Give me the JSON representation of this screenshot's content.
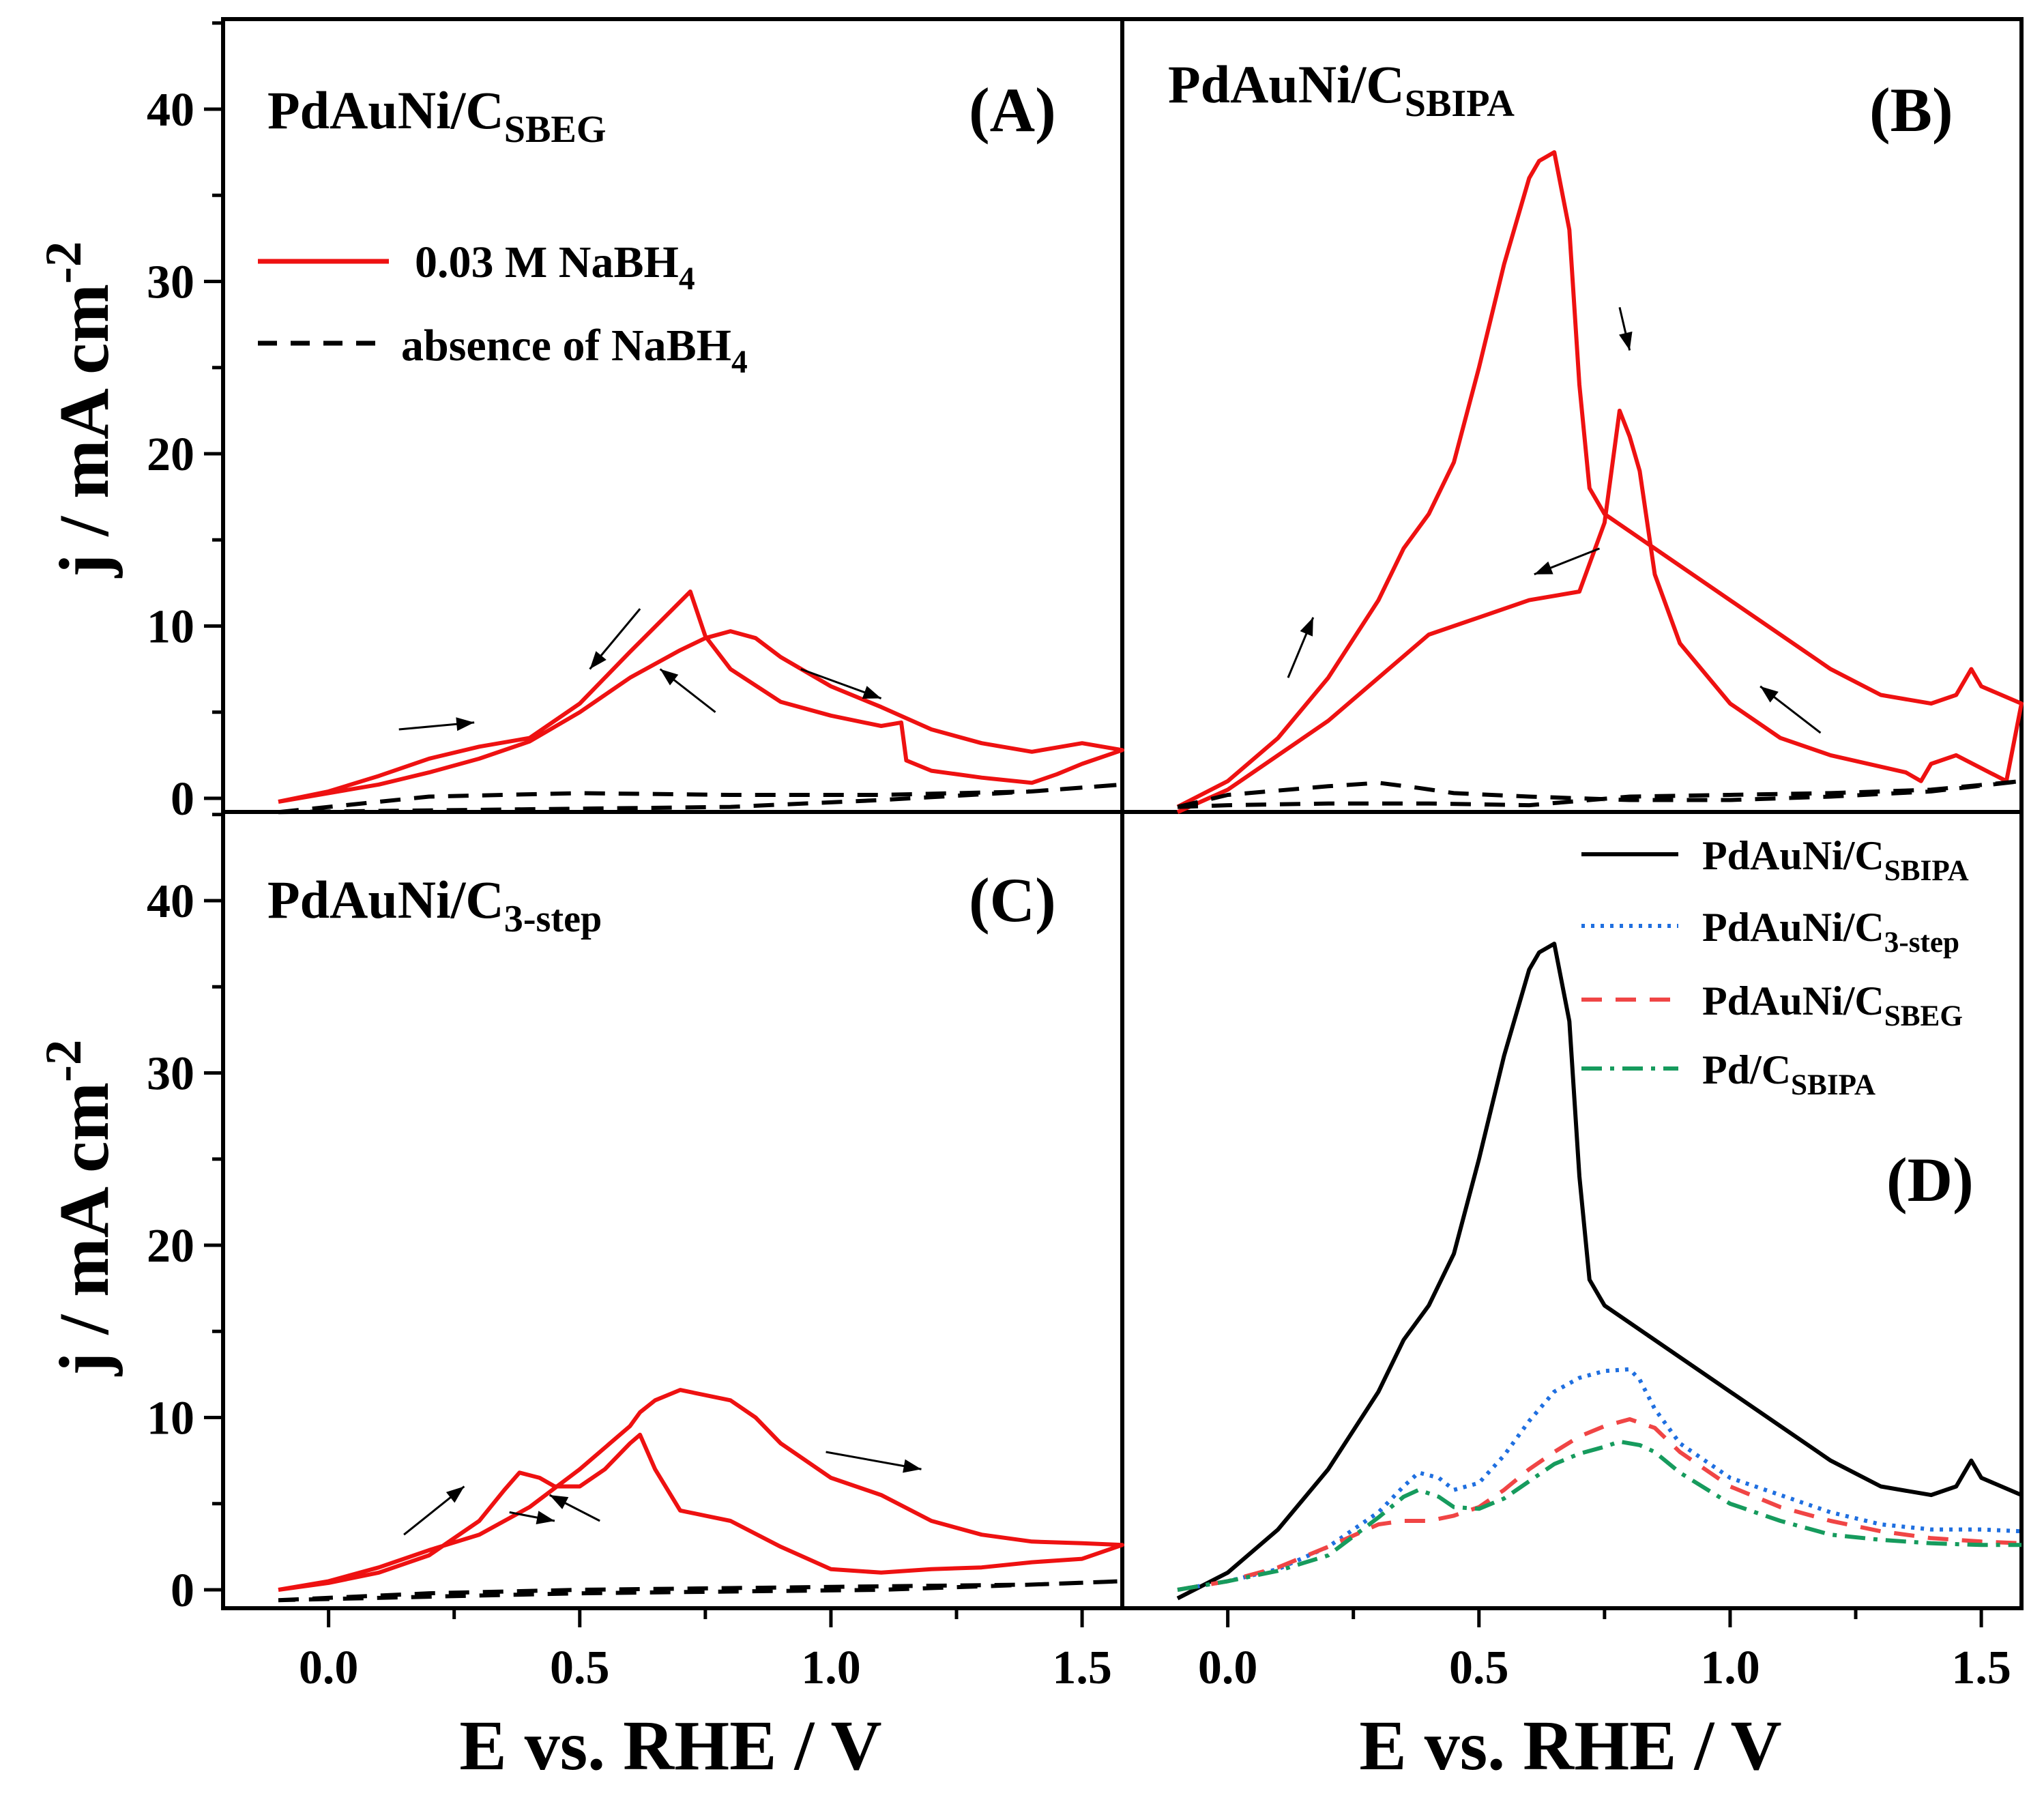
{
  "chart_data": {
    "type": "line",
    "x_tick_labels": [
      "0.0",
      "0.5",
      "1.0",
      "1.5"
    ],
    "y_tick_labels": [
      "0",
      "10",
      "20",
      "30",
      "40"
    ],
    "xlim": [
      -0.21,
      1.58
    ],
    "ylim": [
      -1,
      45
    ],
    "xlabel": "E vs. RHE / V",
    "ylabel": "j / mA cm",
    "ylabel_sup": "-2",
    "legend_A": {
      "solid_label": "0.03 M NaBH",
      "solid_sub": "4",
      "dashed_label": "absence of NaBH",
      "dashed_sub": "4"
    },
    "panels": [
      {
        "id": "A",
        "letter": "(A)",
        "title": "PdAuNi/C",
        "title_sub": "SBEG",
        "series": [
          {
            "name": "0.03 M NaBH4",
            "color": "#ee1111",
            "style": "solid",
            "x": [
              -0.1,
              0.0,
              0.1,
              0.2,
              0.3,
              0.4,
              0.5,
              0.6,
              0.7,
              0.75,
              0.8,
              0.85,
              0.9,
              1.0,
              1.1,
              1.2,
              1.3,
              1.4,
              1.5,
              1.58,
              1.5,
              1.45,
              1.4,
              1.3,
              1.2,
              1.15,
              1.14,
              1.1,
              1.0,
              0.9,
              0.8,
              0.75,
              0.72,
              0.6,
              0.5,
              0.4,
              0.3,
              0.2,
              0.1,
              0.0,
              -0.1
            ],
            "y": [
              -0.2,
              0.3,
              0.8,
              1.5,
              2.3,
              3.3,
              5.0,
              7.0,
              8.6,
              9.3,
              9.7,
              9.3,
              8.2,
              6.5,
              5.3,
              4.0,
              3.2,
              2.7,
              3.2,
              2.8,
              2.0,
              1.4,
              0.9,
              1.2,
              1.6,
              2.2,
              4.4,
              4.2,
              4.8,
              5.6,
              7.5,
              9.4,
              12.0,
              8.5,
              5.5,
              3.5,
              3.0,
              2.3,
              1.3,
              0.4,
              -0.2
            ]
          },
          {
            "name": "absence of NaBH4",
            "color": "#000000",
            "style": "dashed",
            "x": [
              -0.1,
              0.2,
              0.5,
              0.8,
              1.1,
              1.4,
              1.58,
              1.4,
              1.1,
              0.8,
              0.5,
              0.2,
              -0.1
            ],
            "y": [
              -0.8,
              0.1,
              0.3,
              0.2,
              0.2,
              0.4,
              0.8,
              0.4,
              -0.1,
              -0.5,
              -0.6,
              -0.7,
              -0.8
            ]
          }
        ]
      },
      {
        "id": "B",
        "letter": "(B)",
        "title": "PdAuNi/C",
        "title_sub": "SBIPA",
        "series": [
          {
            "name": "0.03 M NaBH4",
            "color": "#ee1111",
            "style": "solid",
            "x": [
              -0.1,
              0.0,
              0.1,
              0.2,
              0.3,
              0.35,
              0.4,
              0.45,
              0.5,
              0.55,
              0.6,
              0.62,
              0.65,
              0.68,
              0.7,
              0.72,
              0.75,
              0.8,
              0.85,
              0.9,
              1.0,
              1.1,
              1.2,
              1.3,
              1.4,
              1.45,
              1.48,
              1.5,
              1.58,
              1.55,
              1.45,
              1.4,
              1.38,
              1.35,
              1.2,
              1.1,
              1.0,
              0.9,
              0.85,
              0.82,
              0.8,
              0.78,
              0.75,
              0.7,
              0.6,
              0.5,
              0.4,
              0.3,
              0.2,
              0.1,
              0.0,
              -0.1
            ],
            "y": [
              -0.5,
              1.0,
              3.5,
              7.0,
              11.5,
              14.5,
              16.5,
              19.5,
              25.0,
              31.0,
              36.0,
              37.0,
              37.5,
              33.0,
              24.0,
              18.0,
              16.5,
              15.5,
              14.5,
              13.5,
              11.5,
              9.5,
              7.5,
              6.0,
              5.5,
              6.0,
              7.5,
              6.5,
              5.5,
              1.0,
              2.5,
              2.0,
              1.0,
              1.5,
              2.5,
              3.5,
              5.5,
              9.0,
              13.0,
              19.0,
              21.0,
              22.5,
              16.0,
              12.0,
              11.5,
              10.5,
              9.5,
              7.0,
              4.5,
              2.5,
              0.5,
              -0.8
            ]
          },
          {
            "name": "absence of NaBH4",
            "color": "#000000",
            "style": "dashed",
            "x": [
              -0.1,
              0.0,
              0.2,
              0.4,
              0.6,
              0.8,
              1.0,
              1.2,
              1.4,
              1.58,
              1.4,
              1.2,
              1.0,
              0.8,
              0.6,
              0.45,
              0.38,
              0.3,
              0.2,
              0.0,
              -0.1
            ],
            "y": [
              -0.5,
              -0.4,
              -0.3,
              -0.3,
              -0.4,
              0.1,
              0.2,
              0.3,
              0.5,
              1.0,
              0.4,
              0.1,
              -0.1,
              -0.1,
              0.1,
              0.3,
              0.6,
              0.9,
              0.7,
              0.2,
              -0.5
            ]
          }
        ]
      },
      {
        "id": "C",
        "letter": "(C)",
        "title": "PdAuNi/C",
        "title_sub": "3-step",
        "series": [
          {
            "name": "0.03 M NaBH4",
            "color": "#ee1111",
            "style": "solid",
            "x": [
              -0.1,
              0.0,
              0.1,
              0.2,
              0.3,
              0.35,
              0.38,
              0.42,
              0.45,
              0.5,
              0.55,
              0.6,
              0.62,
              0.65,
              0.7,
              0.75,
              0.8,
              0.9,
              1.0,
              1.1,
              1.2,
              1.3,
              1.4,
              1.5,
              1.58,
              1.5,
              1.4,
              1.3,
              1.2,
              1.1,
              1.0,
              0.9,
              0.85,
              0.8,
              0.7,
              0.65,
              0.62,
              0.6,
              0.5,
              0.4,
              0.3,
              0.2,
              0.1,
              0.0,
              -0.1
            ],
            "y": [
              0.0,
              0.4,
              1.0,
              2.0,
              4.0,
              5.8,
              6.8,
              6.5,
              6.0,
              6.0,
              7.0,
              8.5,
              9.0,
              7.0,
              4.6,
              4.3,
              4.0,
              2.5,
              1.2,
              1.0,
              1.2,
              1.3,
              1.6,
              1.8,
              2.6,
              2.7,
              2.8,
              3.2,
              4.0,
              5.5,
              6.5,
              8.5,
              10.0,
              11.0,
              11.6,
              11.0,
              10.3,
              9.5,
              7.0,
              4.8,
              3.2,
              2.3,
              1.3,
              0.5,
              0.0
            ]
          },
          {
            "name": "absence of NaBH4",
            "color": "#000000",
            "style": "dashed",
            "x": [
              -0.1,
              0.2,
              0.5,
              0.8,
              1.1,
              1.4,
              1.58,
              1.4,
              1.1,
              0.8,
              0.5,
              0.2,
              -0.1
            ],
            "y": [
              -0.6,
              -0.2,
              0.0,
              0.1,
              0.2,
              0.3,
              0.5,
              0.3,
              0.0,
              -0.1,
              -0.2,
              -0.4,
              -0.6
            ]
          }
        ]
      },
      {
        "id": "D",
        "letter": "(D)",
        "title": "",
        "title_sub": "",
        "legend": [
          {
            "label": "PdAuNi/C",
            "sub": "SBIPA"
          },
          {
            "label": "PdAuNi/C",
            "sub": "3-step"
          },
          {
            "label": "PdAuNi/C",
            "sub": "SBEG"
          },
          {
            "label": "Pd/C",
            "sub": "SBIPA"
          }
        ],
        "series": [
          {
            "name": "PdAuNi/C SBIPA",
            "color": "#000000",
            "style": "solid",
            "x": [
              -0.1,
              0.0,
              0.1,
              0.2,
              0.3,
              0.35,
              0.4,
              0.45,
              0.5,
              0.55,
              0.6,
              0.62,
              0.65,
              0.68,
              0.7,
              0.72,
              0.75,
              0.8,
              0.85,
              0.9,
              1.0,
              1.1,
              1.2,
              1.3,
              1.4,
              1.45,
              1.48,
              1.5,
              1.58
            ],
            "y": [
              -0.5,
              1.0,
              3.5,
              7.0,
              11.5,
              14.5,
              16.5,
              19.5,
              25.0,
              31.0,
              36.0,
              37.0,
              37.5,
              33.0,
              24.0,
              18.0,
              16.5,
              15.5,
              14.5,
              13.5,
              11.5,
              9.5,
              7.5,
              6.0,
              5.5,
              6.0,
              7.5,
              6.5,
              5.5
            ]
          },
          {
            "name": "PdAuNi/C 3-step",
            "color": "#1f6fe0",
            "style": "dotted",
            "x": [
              -0.1,
              0.0,
              0.1,
              0.2,
              0.3,
              0.35,
              0.38,
              0.42,
              0.45,
              0.5,
              0.55,
              0.6,
              0.65,
              0.7,
              0.75,
              0.8,
              0.82,
              0.85,
              0.9,
              1.0,
              1.1,
              1.2,
              1.3,
              1.4,
              1.5,
              1.58
            ],
            "y": [
              0.0,
              0.5,
              1.2,
              2.5,
              4.5,
              6.0,
              6.8,
              6.5,
              5.8,
              6.2,
              7.8,
              9.8,
              11.5,
              12.3,
              12.7,
              12.8,
              12.2,
              10.5,
              8.5,
              6.5,
              5.5,
              4.5,
              3.8,
              3.5,
              3.5,
              3.4
            ]
          },
          {
            "name": "PdAuNi/C SBEG",
            "color": "#f04545",
            "style": "dashed",
            "x": [
              -0.1,
              0.0,
              0.1,
              0.2,
              0.3,
              0.35,
              0.4,
              0.45,
              0.5,
              0.55,
              0.6,
              0.65,
              0.7,
              0.75,
              0.8,
              0.85,
              0.9,
              1.0,
              1.1,
              1.2,
              1.3,
              1.4,
              1.5,
              1.58
            ],
            "y": [
              0.0,
              0.5,
              1.3,
              2.5,
              3.8,
              4.0,
              4.0,
              4.3,
              4.8,
              5.8,
              7.0,
              8.0,
              8.9,
              9.5,
              9.9,
              9.4,
              8.0,
              6.0,
              4.8,
              4.0,
              3.4,
              3.0,
              2.8,
              2.7
            ]
          },
          {
            "name": "Pd/C SBIPA",
            "color": "#169b5d",
            "style": "dashdot",
            "x": [
              -0.1,
              0.0,
              0.1,
              0.2,
              0.3,
              0.35,
              0.38,
              0.42,
              0.45,
              0.5,
              0.55,
              0.6,
              0.65,
              0.7,
              0.75,
              0.78,
              0.82,
              0.85,
              0.9,
              1.0,
              1.1,
              1.2,
              1.3,
              1.4,
              1.5,
              1.58
            ],
            "y": [
              0.0,
              0.5,
              1.1,
              2.0,
              4.2,
              5.4,
              5.8,
              5.4,
              4.8,
              4.7,
              5.3,
              6.3,
              7.3,
              7.9,
              8.3,
              8.6,
              8.4,
              8.0,
              6.8,
              5.0,
              4.0,
              3.2,
              2.9,
              2.7,
              2.6,
              2.6
            ]
          }
        ]
      }
    ]
  }
}
